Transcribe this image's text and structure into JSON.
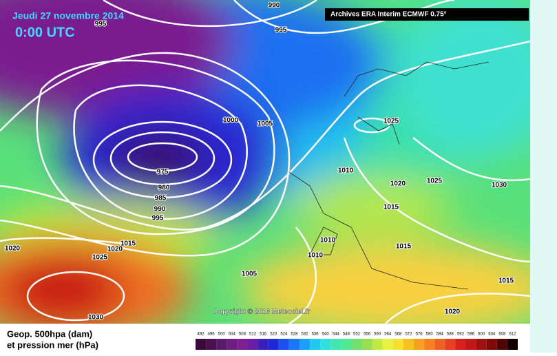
{
  "header": {
    "date": "Jeudi 27 novembre 2014",
    "time": "0:00 UTC",
    "source": "Archives ERA Interim ECMWF 0.75°"
  },
  "isobar_labels": [
    "990",
    "995",
    "995",
    "1000",
    "1005",
    "975",
    "980",
    "985",
    "990",
    "995",
    "1010",
    "1025",
    "1020",
    "1025",
    "1030",
    "1015",
    "1015",
    "1020",
    "1025",
    "1020",
    "1010",
    "1010",
    "1015",
    "1005",
    "1015",
    "1030",
    "1020"
  ],
  "copyright": "Copyright © 2016 Meteociel.fr",
  "legend": {
    "line1": "Geop. 500hpa (dam)",
    "line2": "et pression mer (hPa)"
  },
  "colorbar": {
    "ticks": [
      492,
      496,
      500,
      504,
      508,
      512,
      516,
      520,
      524,
      528,
      532,
      536,
      540,
      544,
      548,
      552,
      556,
      560,
      564,
      568,
      572,
      576,
      580,
      584,
      588,
      592,
      596,
      600,
      604,
      608,
      612
    ],
    "colors": [
      "#3a0a3a",
      "#4a1050",
      "#5a1a6a",
      "#6e1e82",
      "#801e94",
      "#6a1ea8",
      "#3a1ec0",
      "#1a28d8",
      "#1a50f0",
      "#1a78f8",
      "#1aa0f8",
      "#20c8f0",
      "#30e0e0",
      "#40e8b0",
      "#50e890",
      "#70e070",
      "#98e050",
      "#c0e840",
      "#e8f040",
      "#f8e030",
      "#f8c020",
      "#f8a020",
      "#f88020",
      "#f06020",
      "#e84020",
      "#d82020",
      "#c01818",
      "#a01010",
      "#800a0a",
      "#500505",
      "#100000"
    ]
  }
}
